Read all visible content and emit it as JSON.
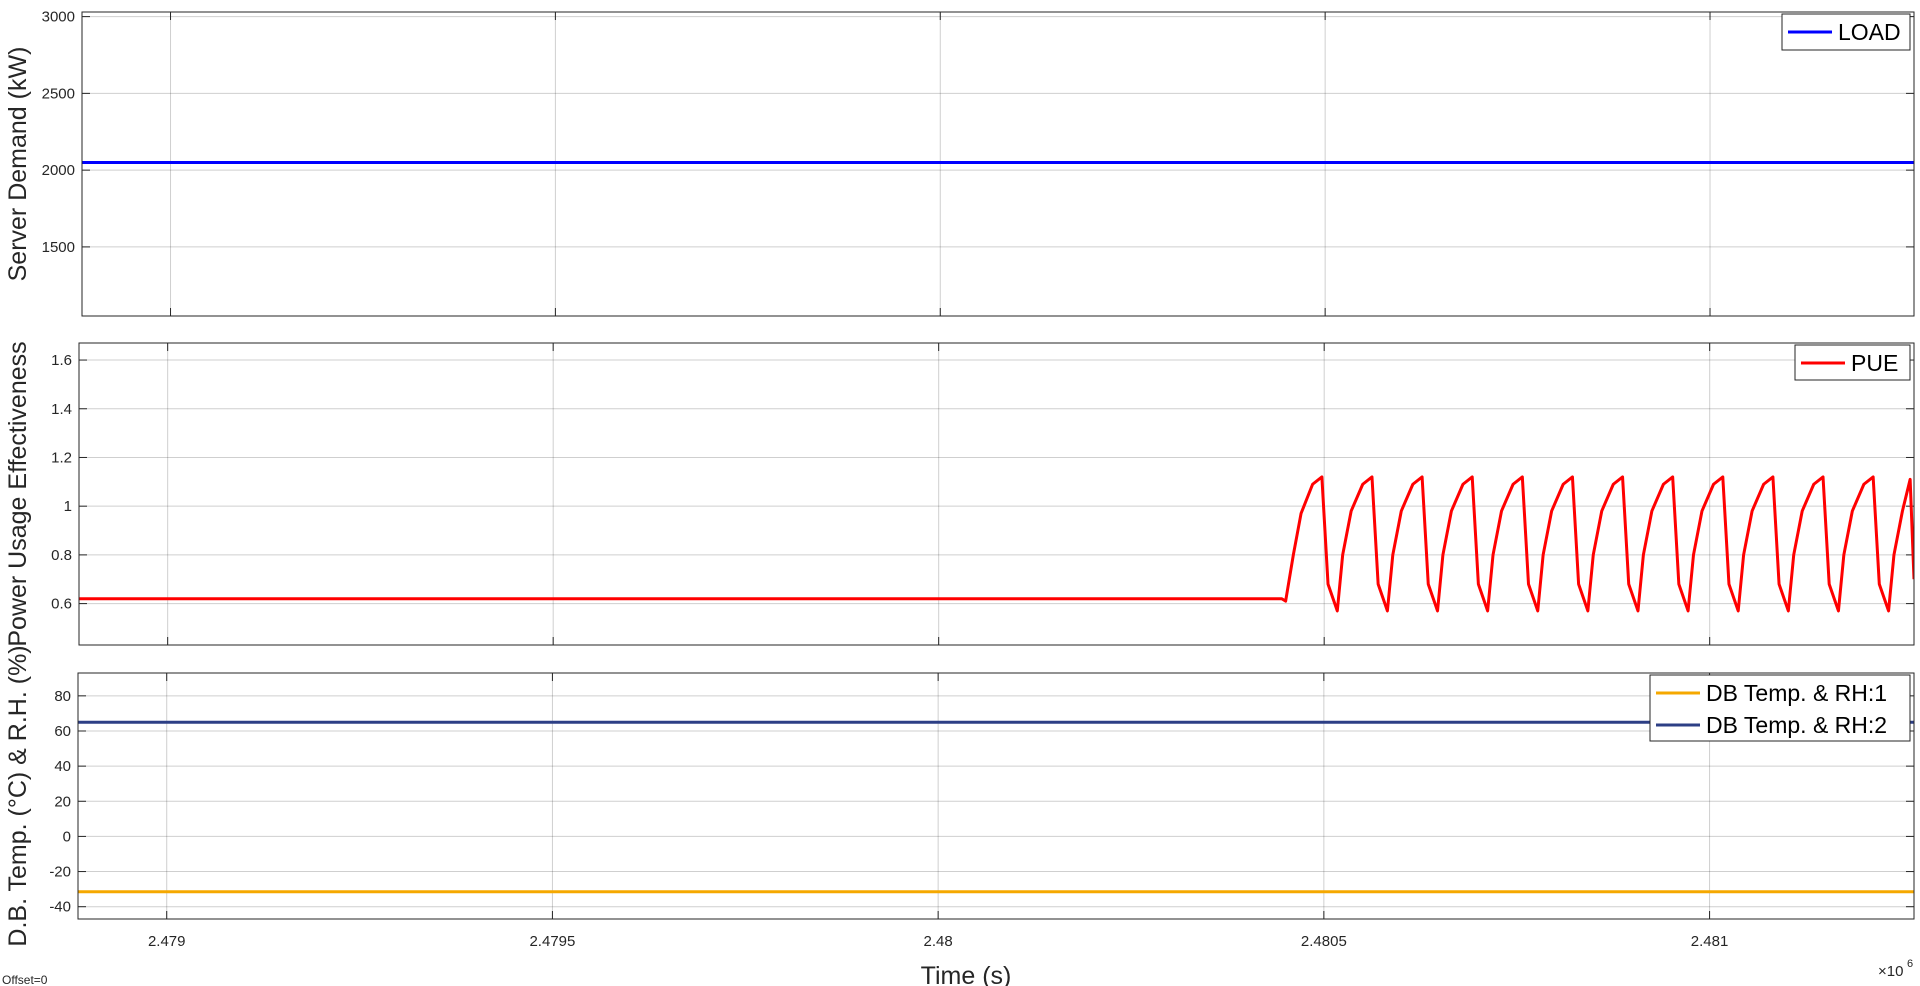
{
  "offset_label": "Offset=0",
  "chart_data": [
    {
      "type": "line",
      "ylabel": "Server Demand (kW)",
      "xlim": [
        2478885,
        2481265
      ],
      "ylim": [
        1050,
        3030
      ],
      "yticks": [
        1500,
        2000,
        2500,
        3000
      ],
      "yticklabels": [
        "1500",
        "2000",
        "2500",
        "3000"
      ],
      "grid": true,
      "legend_position": "top-right",
      "series": [
        {
          "name": "LOAD",
          "color": "#0000ff",
          "points": [
            [
              2478885,
              2050
            ],
            [
              2481265,
              2050
            ]
          ]
        }
      ]
    },
    {
      "type": "line",
      "ylabel": "Power Usage Effectiveness",
      "xlim": [
        2478885,
        2481265
      ],
      "ylim": [
        0.43,
        1.67
      ],
      "yticks": [
        0.6,
        0.8,
        1.0,
        1.2,
        1.4,
        1.6
      ],
      "yticklabels": [
        "0.6",
        "0.8",
        "1",
        "1.2",
        "1.4",
        "1.6"
      ],
      "grid": true,
      "legend_position": "top-right",
      "series": [
        {
          "name": "PUE",
          "color": "#ff0000",
          "points": [
            [
              2478885,
              0.62
            ],
            [
              2480445,
              0.62
            ],
            [
              2480450,
              0.61
            ],
            [
              2480460,
              0.8
            ],
            [
              2480470,
              0.97
            ],
            [
              2480485,
              1.09
            ],
            [
              2480497,
              1.12
            ],
            [
              2480505,
              0.68
            ],
            [
              2480517,
              0.57
            ],
            [
              2480524,
              0.8
            ],
            [
              2480535,
              0.98
            ],
            [
              2480550,
              1.09
            ],
            [
              2480562,
              1.12
            ],
            [
              2480570,
              0.68
            ],
            [
              2480582,
              0.57
            ],
            [
              2480589,
              0.8
            ],
            [
              2480600,
              0.98
            ],
            [
              2480615,
              1.09
            ],
            [
              2480627,
              1.12
            ],
            [
              2480635,
              0.68
            ],
            [
              2480647,
              0.57
            ],
            [
              2480654,
              0.8
            ],
            [
              2480665,
              0.98
            ],
            [
              2480680,
              1.09
            ],
            [
              2480692,
              1.12
            ],
            [
              2480700,
              0.68
            ],
            [
              2480712,
              0.57
            ],
            [
              2480719,
              0.8
            ],
            [
              2480730,
              0.98
            ],
            [
              2480745,
              1.09
            ],
            [
              2480757,
              1.12
            ],
            [
              2480765,
              0.68
            ],
            [
              2480777,
              0.57
            ],
            [
              2480784,
              0.8
            ],
            [
              2480795,
              0.98
            ],
            [
              2480810,
              1.09
            ],
            [
              2480822,
              1.12
            ],
            [
              2480830,
              0.68
            ],
            [
              2480842,
              0.57
            ],
            [
              2480849,
              0.8
            ],
            [
              2480860,
              0.98
            ],
            [
              2480875,
              1.09
            ],
            [
              2480887,
              1.12
            ],
            [
              2480895,
              0.68
            ],
            [
              2480907,
              0.57
            ],
            [
              2480914,
              0.8
            ],
            [
              2480925,
              0.98
            ],
            [
              2480940,
              1.09
            ],
            [
              2480952,
              1.12
            ],
            [
              2480960,
              0.68
            ],
            [
              2480972,
              0.57
            ],
            [
              2480979,
              0.8
            ],
            [
              2480990,
              0.98
            ],
            [
              2481005,
              1.09
            ],
            [
              2481017,
              1.12
            ],
            [
              2481025,
              0.68
            ],
            [
              2481037,
              0.57
            ],
            [
              2481044,
              0.8
            ],
            [
              2481055,
              0.98
            ],
            [
              2481070,
              1.09
            ],
            [
              2481082,
              1.12
            ],
            [
              2481090,
              0.68
            ],
            [
              2481102,
              0.57
            ],
            [
              2481109,
              0.8
            ],
            [
              2481120,
              0.98
            ],
            [
              2481135,
              1.09
            ],
            [
              2481147,
              1.12
            ],
            [
              2481155,
              0.68
            ],
            [
              2481167,
              0.57
            ],
            [
              2481174,
              0.8
            ],
            [
              2481185,
              0.98
            ],
            [
              2481200,
              1.09
            ],
            [
              2481212,
              1.12
            ],
            [
              2481220,
              0.68
            ],
            [
              2481232,
              0.57
            ],
            [
              2481239,
              0.8
            ],
            [
              2481250,
              0.98
            ],
            [
              2481260,
              1.11
            ],
            [
              2481265,
              0.7
            ]
          ]
        }
      ]
    },
    {
      "type": "line",
      "ylabel": "D.B. Temp. (°C) & R.H. (%)",
      "xlim": [
        2478885,
        2481265
      ],
      "ylim": [
        -47,
        93
      ],
      "yticks": [
        -40,
        -20,
        0,
        20,
        40,
        60,
        80
      ],
      "yticklabels": [
        "-40",
        "-20",
        "0",
        "20",
        "40",
        "60",
        "80"
      ],
      "xlabel": "Time (s)",
      "xticks": [
        2479000,
        2479500,
        2480000,
        2480500,
        2481000
      ],
      "xticklabels": [
        "2.479",
        "2.4795",
        "2.48",
        "2.4805",
        "2.481"
      ],
      "x_exponent_label": "×10",
      "x_exponent": "6",
      "grid": true,
      "legend_position": "top-right",
      "series": [
        {
          "name": "DB Temp. & RH:1",
          "color": "#f5a800",
          "points": [
            [
              2478885,
              -31.5
            ],
            [
              2481265,
              -31.5
            ]
          ]
        },
        {
          "name": "DB Temp. & RH:2",
          "color": "#2d3f85",
          "points": [
            [
              2478885,
              65
            ],
            [
              2481265,
              65
            ]
          ]
        }
      ]
    }
  ]
}
